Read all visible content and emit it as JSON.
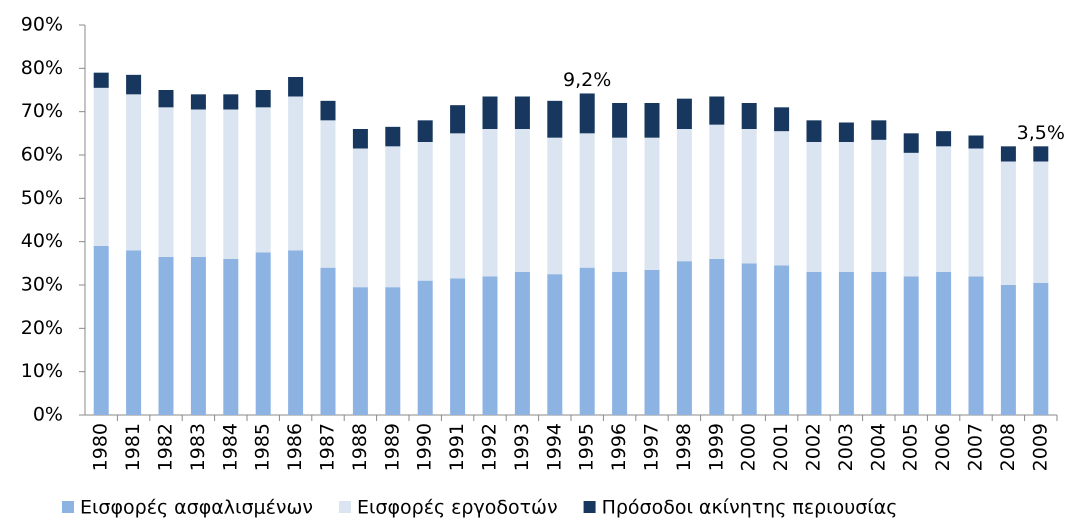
{
  "chart_data": {
    "type": "stacked_bar",
    "categories": [
      "1980",
      "1981",
      "1982",
      "1983",
      "1984",
      "1985",
      "1986",
      "1987",
      "1988",
      "1989",
      "1990",
      "1991",
      "1992",
      "1993",
      "1994",
      "1995",
      "1996",
      "1997",
      "1998",
      "1999",
      "2000",
      "2001",
      "2002",
      "2003",
      "2004",
      "2005",
      "2006",
      "2007",
      "2008",
      "2009"
    ],
    "series": [
      {
        "name": "Εισφορές ασφαλισμένων",
        "color": "#8db3e2",
        "values": [
          39,
          38,
          36.5,
          36.5,
          36,
          37.5,
          38,
          34,
          29.5,
          29.5,
          31,
          31.5,
          32,
          33,
          32.5,
          34,
          33,
          33.5,
          35.5,
          36,
          35,
          34.5,
          33,
          33,
          33,
          32,
          33,
          32,
          30,
          30.5
        ]
      },
      {
        "name": "Εισφορές εργοδοτών",
        "color": "#dbe5f1",
        "values": [
          36.5,
          36,
          34.5,
          34,
          34.5,
          33.5,
          35.5,
          34,
          32,
          32.5,
          32,
          33.5,
          34,
          33,
          31.5,
          31,
          31,
          30.5,
          30.5,
          31,
          31,
          31,
          30,
          30,
          30.5,
          28.5,
          29,
          29.5,
          28.5,
          28
        ]
      },
      {
        "name": "Πρόσοδοι ακίνητης περιουσίας",
        "color": "#17375e",
        "values": [
          3.5,
          4.5,
          4,
          3.5,
          3.5,
          4,
          4.5,
          4.5,
          4.5,
          4.5,
          5,
          6.5,
          7.5,
          7.5,
          8.5,
          9.2,
          8,
          8,
          7,
          6.5,
          6,
          5.5,
          5,
          4.5,
          4.5,
          4.5,
          3.5,
          3,
          3.5,
          3.5
        ],
        "value_labels": [
          null,
          null,
          null,
          null,
          null,
          null,
          null,
          null,
          null,
          null,
          null,
          null,
          null,
          null,
          null,
          "9,2%",
          null,
          null,
          null,
          null,
          null,
          null,
          null,
          null,
          null,
          null,
          null,
          null,
          null,
          "3,5%"
        ]
      }
    ],
    "ylim": [
      0,
      90
    ],
    "yticks": [
      {
        "value": 0,
        "label": "0%"
      },
      {
        "value": 10,
        "label": "10%"
      },
      {
        "value": 20,
        "label": "20%"
      },
      {
        "value": 30,
        "label": "30%"
      },
      {
        "value": 40,
        "label": "40%"
      },
      {
        "value": 50,
        "label": "50%"
      },
      {
        "value": 60,
        "label": "60%"
      },
      {
        "value": 70,
        "label": "70%"
      },
      {
        "value": 80,
        "label": "80%"
      },
      {
        "value": 90,
        "label": "90%"
      }
    ],
    "legend": "bottom"
  }
}
